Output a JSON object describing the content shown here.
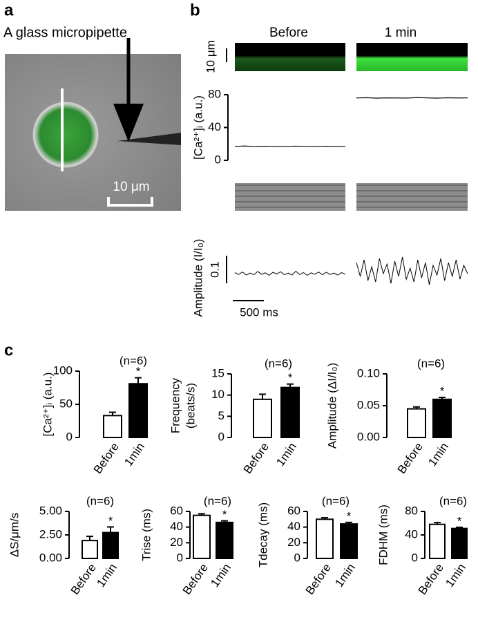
{
  "figure": {
    "panel_labels": [
      "a",
      "b",
      "c"
    ],
    "a": {
      "caption": "A glass micropipette",
      "scale": "10 μm"
    },
    "b": {
      "columns": [
        "Before",
        "1 min"
      ],
      "scale_linescan": "10 μm"
    }
  },
  "chart_data": [
    {
      "type": "line",
      "ylabel": "[Ca²⁺]ᵢ (a.u.)",
      "ylim": [
        0,
        80
      ],
      "yticks": [
        0,
        40,
        80
      ],
      "series": [
        {
          "color": "#000000",
          "values": [
            17,
            17.5,
            16.8,
            17.2,
            17,
            16.9,
            17.3,
            17.1,
            16.8,
            17.2,
            17,
            16.9
          ]
        },
        {
          "color": "#000000",
          "values": [
            76,
            76.3,
            75.8,
            76.1,
            76,
            75.9,
            76.4,
            76.1,
            75.8,
            76.2,
            76,
            76.1
          ]
        }
      ]
    },
    {
      "type": "trace",
      "ylabel": "Amplitude (I/I₀)",
      "scale_y": 0.1,
      "scale_x_label": "500 ms",
      "series": [
        {
          "color": "#000000",
          "values": [
            0.004,
            -0.003,
            0.006,
            -0.005,
            0.002,
            -0.004,
            0.008,
            -0.002,
            0.003,
            -0.006,
            0.005,
            -0.001,
            0.007,
            -0.004,
            0.002,
            -0.005,
            0.009,
            -0.003,
            0.004,
            -0.006,
            0.003,
            -0.002,
            0.006,
            -0.004,
            0.005,
            -0.003,
            0.002,
            -0.005,
            0.004,
            -0.002
          ]
        },
        {
          "color": "#000000",
          "values": [
            0.03,
            -0.02,
            0.04,
            -0.035,
            0.015,
            -0.04,
            0.045,
            -0.01,
            0.025,
            -0.045,
            0.035,
            -0.02,
            0.05,
            -0.03,
            0.01,
            -0.04,
            0.04,
            -0.025,
            0.03,
            -0.05,
            0.02,
            -0.015,
            0.045,
            -0.035,
            0.03,
            -0.02,
            0.04,
            -0.03,
            0.02,
            -0.01
          ]
        }
      ]
    },
    {
      "type": "bar",
      "ylabel": "[Ca²⁺]ᵢ (a.u.)",
      "categories": [
        "Before",
        "1min"
      ],
      "values": [
        33,
        81
      ],
      "errors": [
        5,
        9
      ],
      "colors": [
        "#ffffff",
        "#000000"
      ],
      "ylim": [
        0,
        100
      ],
      "yticks": [
        0,
        50,
        100
      ],
      "note": "(n=6)",
      "marker": "*"
    },
    {
      "type": "bar",
      "ylabel": [
        "Frequency",
        "(beats/s)"
      ],
      "categories": [
        "Before",
        "1min"
      ],
      "values": [
        9,
        11.8
      ],
      "errors": [
        1.2,
        0.8
      ],
      "colors": [
        "#ffffff",
        "#000000"
      ],
      "ylim": [
        0,
        15
      ],
      "yticks": [
        0,
        5,
        10,
        15
      ],
      "note": "(n=6)",
      "marker": "*"
    },
    {
      "type": "bar",
      "ylabel": "Amplitude (ΔI/I₀)",
      "categories": [
        "Before",
        "1min"
      ],
      "values": [
        0.045,
        0.06
      ],
      "errors": [
        0.003,
        0.003
      ],
      "colors": [
        "#ffffff",
        "#000000"
      ],
      "ylim": [
        0,
        0.1
      ],
      "yticks": [
        {
          "value": 0,
          "label": "0.00"
        },
        {
          "value": 0.05,
          "label": "0.05"
        },
        {
          "value": 0.1,
          "label": "0.10"
        }
      ],
      "note": "(n=6)",
      "marker": "*"
    },
    {
      "type": "bar",
      "ylabel": "ΔS/μm/s",
      "categories": [
        "Before",
        "1min"
      ],
      "values": [
        1.9,
        2.75
      ],
      "errors": [
        0.45,
        0.6
      ],
      "colors": [
        "#ffffff",
        "#000000"
      ],
      "ylim": [
        0,
        5
      ],
      "yticks": [
        {
          "value": 0,
          "label": "0.00"
        },
        {
          "value": 2.5,
          "label": "2.50"
        },
        {
          "value": 5,
          "label": "5.00"
        }
      ],
      "note": "(n=6)",
      "marker": "*"
    },
    {
      "type": "bar",
      "ylabel": "Trise (ms)",
      "categories": [
        "Before",
        "1min"
      ],
      "values": [
        55,
        46
      ],
      "errors": [
        2,
        2
      ],
      "colors": [
        "#ffffff",
        "#000000"
      ],
      "ylim": [
        0,
        60
      ],
      "yticks": [
        0,
        20,
        40,
        60
      ],
      "note": "(n=6)",
      "marker": "*"
    },
    {
      "type": "bar",
      "ylabel": "Tdecay (ms)",
      "categories": [
        "Before",
        "1min"
      ],
      "values": [
        50,
        44
      ],
      "errors": [
        2,
        2
      ],
      "colors": [
        "#ffffff",
        "#000000"
      ],
      "ylim": [
        0,
        60
      ],
      "yticks": [
        0,
        20,
        40,
        60
      ],
      "note": "(n=6)",
      "marker": "*"
    },
    {
      "type": "bar",
      "ylabel": "FDHM (ms)",
      "categories": [
        "Before",
        "1min"
      ],
      "values": [
        58,
        51
      ],
      "errors": [
        3,
        2
      ],
      "colors": [
        "#ffffff",
        "#000000"
      ],
      "ylim": [
        0,
        80
      ],
      "yticks": [
        0,
        40,
        80
      ],
      "note": "(n=6)",
      "marker": "*"
    }
  ]
}
